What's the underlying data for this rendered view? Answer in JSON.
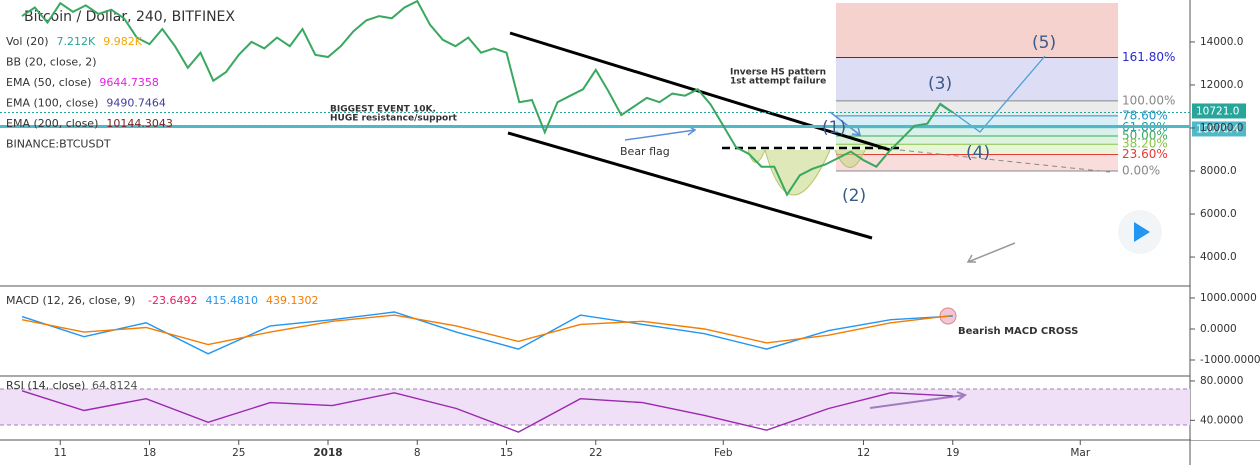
{
  "chart_data": [
    {
      "type": "line",
      "title": "Bitcoin / Dollar, 240, BITFINEX",
      "legend": [
        {
          "name": "Vol (20)",
          "values": [
            "7.212K",
            "9.982K"
          ],
          "colors": [
            "#26a69a",
            "#f7a600"
          ]
        },
        {
          "name": "BB (20, close, 2)",
          "values": [],
          "colors": []
        },
        {
          "name": "EMA (50, close)",
          "values": [
            "9644.7358"
          ],
          "colors": [
            "#e91ee8"
          ]
        },
        {
          "name": "EMA (100, close)",
          "values": [
            "9490.7464"
          ],
          "colors": [
            "#3f3fa0"
          ]
        },
        {
          "name": "EMA (200, close)",
          "values": [
            "10144.3043"
          ],
          "colors": [
            "#7a1f1f"
          ]
        },
        {
          "name": "BINANCE:BTCUSDT",
          "values": [],
          "colors": []
        }
      ],
      "series": [
        {
          "name": "BTCUSD",
          "color": "#3aa860",
          "values": [
            15200,
            15600,
            14900,
            15800,
            15400,
            15700,
            15300,
            15500,
            15100,
            14200,
            13900,
            14600,
            13800,
            12800,
            13500,
            12200,
            12600,
            13400,
            14000,
            13700,
            14200,
            13800,
            14600,
            13400,
            13300,
            13800,
            14500,
            15000,
            15200,
            15100,
            15600,
            15900,
            14800,
            14100,
            13800,
            14200,
            13500,
            13700,
            13500,
            11200,
            11300,
            9800,
            11200,
            11500,
            11800,
            12700,
            11700,
            10600,
            11000,
            11400,
            11200,
            11600,
            11500,
            11800,
            11100,
            10100,
            9100,
            8800,
            8200,
            8200,
            6900,
            7800,
            8100,
            8300,
            8600,
            8900,
            8500,
            8200,
            8900,
            9500,
            10100,
            10200,
            11100,
            10721
          ]
        }
      ],
      "xticks": [
        {
          "value": 3,
          "label": "11"
        },
        {
          "value": 10,
          "label": "18"
        },
        {
          "value": 17,
          "label": "25"
        },
        {
          "value": 24,
          "label": "2018"
        },
        {
          "value": 31,
          "label": "8"
        },
        {
          "value": 38,
          "label": "15"
        },
        {
          "value": 45,
          "label": "22"
        },
        {
          "value": 55,
          "label": "Feb"
        },
        {
          "value": 66,
          "label": "12"
        },
        {
          "value": 73,
          "label": "19"
        },
        {
          "value": 83,
          "label": "Mar"
        }
      ],
      "ylim": [
        2700,
        15950
      ],
      "yticks": [
        {
          "value": 4000,
          "label": "4000.0"
        },
        {
          "value": 6000,
          "label": "6000.0"
        },
        {
          "value": 8000,
          "label": "8000.0"
        },
        {
          "value": 10000,
          "label": "10000.0"
        },
        {
          "value": 12000,
          "label": "12000.0"
        },
        {
          "value": 14000,
          "label": "14000.0"
        }
      ],
      "price_tags": [
        {
          "value": 10721,
          "label": "10721.0",
          "color": "#26a69a"
        },
        {
          "value": 10070.4,
          "label": "10070.4",
          "color": "#4fb8c9"
        }
      ],
      "fib": {
        "low": 8000,
        "high": 11260,
        "levels": [
          {
            "value": 161.8,
            "label": "161.80%",
            "color": "#2a2ad0"
          },
          {
            "value": 100,
            "label": "100.00%",
            "color": "#888888"
          },
          {
            "value": 78.6,
            "label": "78.60%",
            "color": "#2196c8"
          },
          {
            "value": 61.8,
            "label": "61.80%",
            "color": "#26a0a0"
          },
          {
            "value": 50,
            "label": "50.00%",
            "color": "#3aa860"
          },
          {
            "value": 38.2,
            "label": "38.20%",
            "color": "#8bc34a"
          },
          {
            "value": 23.6,
            "label": "23.60%",
            "color": "#e53935"
          },
          {
            "value": 0,
            "label": "0.00%",
            "color": "#888888"
          }
        ]
      },
      "annotations": [
        "BIGGEST EVENT 10K.",
        "HUGE resistance/support",
        "Bear flag",
        "Inverse HS pattern",
        "1st attempt failure",
        "(1)",
        "(2)",
        "(3)",
        "(4)",
        "(5)"
      ]
    },
    {
      "type": "line",
      "title": "MACD (12, 26, close, 9)",
      "legend_values": [
        "-23.6492",
        "415.4810",
        "439.1302"
      ],
      "series": [
        {
          "name": "MACD",
          "color": "#2196f3",
          "values": [
            400,
            -250,
            200,
            -800,
            100,
            300,
            550,
            -100,
            -650,
            450,
            150,
            -150,
            -650,
            -50,
            300,
            415
          ]
        },
        {
          "name": "Signal",
          "color": "#f57c00",
          "values": [
            300,
            -100,
            50,
            -500,
            -100,
            250,
            450,
            100,
            -400,
            150,
            250,
            0,
            -450,
            -200,
            200,
            439
          ]
        }
      ],
      "ylim": [
        -1484,
        1355
      ],
      "yticks": [
        {
          "value": -1000,
          "label": "-1000.0000"
        },
        {
          "value": 0,
          "label": "0.0000"
        },
        {
          "value": 1000,
          "label": "1000.0000"
        }
      ],
      "annotation": "Bearish MACD CROSS"
    },
    {
      "type": "line",
      "title": "RSI (14, close)",
      "legend_values": [
        "64.8124"
      ],
      "series": [
        {
          "name": "RSI",
          "color": "#9c27b0",
          "values": [
            70,
            50,
            62,
            38,
            58,
            55,
            68,
            52,
            28,
            62,
            58,
            45,
            30,
            52,
            68,
            64.8
          ]
        }
      ],
      "ylim": [
        20,
        83
      ],
      "yticks": [
        {
          "value": 40,
          "label": "40.0000"
        },
        {
          "value": 80,
          "label": "80.0000"
        }
      ]
    }
  ]
}
